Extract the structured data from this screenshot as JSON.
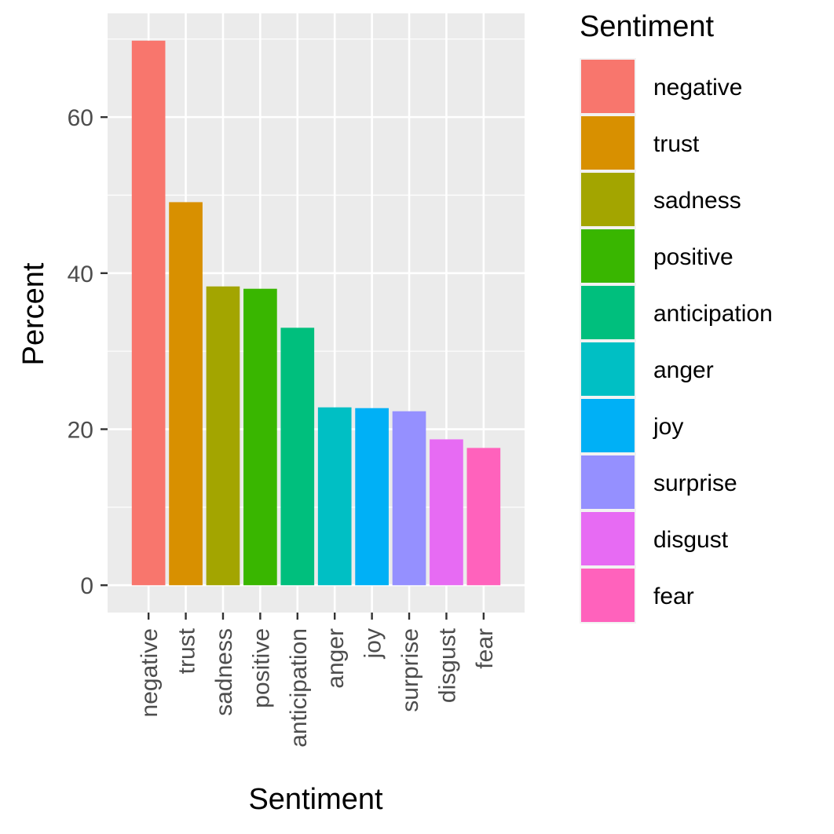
{
  "chart_data": {
    "type": "bar",
    "categories": [
      "negative",
      "trust",
      "sadness",
      "positive",
      "anticipation",
      "anger",
      "joy",
      "surprise",
      "disgust",
      "fear"
    ],
    "values": [
      69.8,
      49.1,
      38.3,
      38.0,
      33.0,
      22.8,
      22.7,
      22.3,
      18.7,
      17.6
    ],
    "colors": [
      "#F8766D",
      "#D89000",
      "#A3A500",
      "#39B600",
      "#00BF7D",
      "#00BFC4",
      "#00B0F6",
      "#9590FF",
      "#E76BF3",
      "#FF62BC"
    ],
    "xlabel": "Sentiment",
    "ylabel": "Percent",
    "ylim": [
      -3.5,
      73.3
    ],
    "yticks": [
      0,
      20,
      40,
      60
    ],
    "grid": true,
    "legend": {
      "title": "Sentiment",
      "position": "right",
      "entries": [
        "negative",
        "trust",
        "sadness",
        "positive",
        "anticipation",
        "anger",
        "joy",
        "surprise",
        "disgust",
        "fear"
      ]
    }
  }
}
